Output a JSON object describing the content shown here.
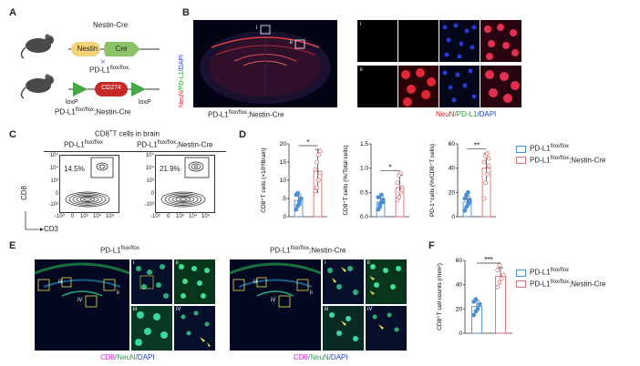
{
  "panels": {
    "A": "A",
    "B": "B",
    "C": "C",
    "D": "D",
    "E": "E",
    "F": "F"
  },
  "panelA": {
    "nestin_cre_title": "Nestin-Cre",
    "nestin": "Nestin",
    "cre": "Cre",
    "cross": "×",
    "pdl1_flox": "PD-L1",
    "pdl1_flox_sup": "flox/flox",
    "cd274": "CD274",
    "loxp_left": "loxP",
    "loxp_right": "loxP",
    "genotype": "PD-L1",
    "genotype_sup": "flox/flox",
    "genotype_suffix": ";Nestin-Cre"
  },
  "panelB": {
    "stain_neun": "NeuN",
    "stain_pdl1": "/PD-L1",
    "stain_dapi": "/DAPI",
    "roi_i": "i",
    "roi_ii": "ii",
    "caption": "PD-L1",
    "caption_sup": "flox/flox",
    "caption_suffix": ";Nestin-Cre",
    "zoom_i": "i",
    "zoom_ii": "ii",
    "legend_neun": "NeuN",
    "legend_pdl1": "/PD-L1",
    "legend_dapi": "/DAPI"
  },
  "panelC": {
    "title": "CD8",
    "title_sup": "+",
    "title_suffix": "T cells  in brain",
    "group1": "PD-L1",
    "group1_sup": "flox/flox",
    "group2": "PD-L1",
    "group2_sup": "flox/flox",
    "group2_suffix": ";Nestin-Cre",
    "pct1": "14.5%",
    "pct2": "21.9%",
    "yaxis": "CD8",
    "xaxis": "CD3",
    "yticks": [
      "10⁵",
      "10⁴",
      "10³",
      "0",
      "-10³"
    ],
    "xticks": [
      "-10³",
      "0",
      "10³",
      "10⁴",
      "10⁵"
    ]
  },
  "panelD": {
    "legend": [
      {
        "label": "PD-L1",
        "sup": "flox/flox",
        "suffix": "",
        "color": "#4a90d9"
      },
      {
        "label": "PD-L1",
        "sup": "flox/flox",
        "suffix": ";Nestin-Cre",
        "color": "#e07070"
      }
    ]
  },
  "panelE": {
    "group1": "PD-L1",
    "group1_sup": "flox/flox",
    "group2": "PD-L1",
    "group2_sup": "flox/flox",
    "group2_suffix": ";Nestin-Cre",
    "roi": [
      "i",
      "ii",
      "iii",
      "iV"
    ],
    "stain_cd8": "CD8",
    "stain_neun": "/NeuN",
    "stain_dapi": "/DAPI"
  },
  "panelF": {
    "legend": [
      {
        "label": "PD-L1",
        "sup": "flox/flox",
        "suffix": "",
        "color": "#4a90d9"
      },
      {
        "label": "PD-L1",
        "sup": "flox/flox",
        "suffix": ";Nestin-Cre",
        "color": "#e07070"
      }
    ]
  },
  "chart_data": [
    {
      "type": "bar",
      "panel": "D-1",
      "ylabel": "CD8⁺T cells (×10³/Brain)",
      "yticks": [
        "0",
        "5",
        "10",
        "15",
        "20"
      ],
      "ylim": [
        0,
        20
      ],
      "categories": [
        "PD-L1 flox/flox",
        "PD-L1 flox/flox;Nestin-Cre"
      ],
      "values": [
        4.5,
        12.5
      ],
      "errors": [
        1.5,
        6
      ],
      "points": [
        [
          2,
          3,
          4,
          5,
          6,
          6.5,
          3.5,
          5
        ],
        [
          7,
          8,
          10,
          12,
          13,
          15,
          17,
          18
        ]
      ],
      "significance": "*"
    },
    {
      "type": "bar",
      "panel": "D-2",
      "ylabel": "CD8⁺T cells (%/Total cells)",
      "yticks": [
        "0.0",
        "0.5",
        "1.0",
        "1.5"
      ],
      "ylim": [
        0,
        1.5
      ],
      "categories": [
        "PD-L1 flox/flox",
        "PD-L1 flox/flox;Nestin-Cre"
      ],
      "values": [
        0.3,
        0.6
      ],
      "errors": [
        0.12,
        0.25
      ],
      "points": [
        [
          0.15,
          0.2,
          0.3,
          0.35,
          0.4,
          0.25,
          0.45,
          0.3
        ],
        [
          0.35,
          0.4,
          0.5,
          0.6,
          0.7,
          0.85,
          0.9,
          0.55
        ]
      ],
      "significance": "*"
    },
    {
      "type": "bar",
      "panel": "D-3",
      "ylabel": "PD-1⁺cells (%/CD8⁺T cells)",
      "yticks": [
        "0",
        "20",
        "40",
        "60"
      ],
      "ylim": [
        0,
        60
      ],
      "categories": [
        "PD-L1 flox/flox",
        "PD-L1 flox/flox;Nestin-Cre"
      ],
      "values": [
        12,
        40
      ],
      "errors": [
        5,
        12
      ],
      "points": [
        [
          5,
          8,
          10,
          12,
          15,
          18,
          20,
          14
        ],
        [
          15,
          28,
          35,
          42,
          45,
          50,
          52,
          48
        ]
      ],
      "significance": "**"
    },
    {
      "type": "bar",
      "panel": "F",
      "ylabel": "CD8⁺T cell counts (/mm²)",
      "yticks": [
        "0",
        "20",
        "40",
        "60"
      ],
      "ylim": [
        0,
        60
      ],
      "categories": [
        "PD-L1 flox/flox",
        "PD-L1 flox/flox;Nestin-Cre"
      ],
      "values": [
        22,
        47
      ],
      "errors": [
        5,
        7
      ],
      "points": [
        [
          15,
          18,
          20,
          24,
          26,
          28
        ],
        [
          38,
          42,
          45,
          48,
          52,
          56
        ]
      ],
      "significance": "***"
    }
  ]
}
